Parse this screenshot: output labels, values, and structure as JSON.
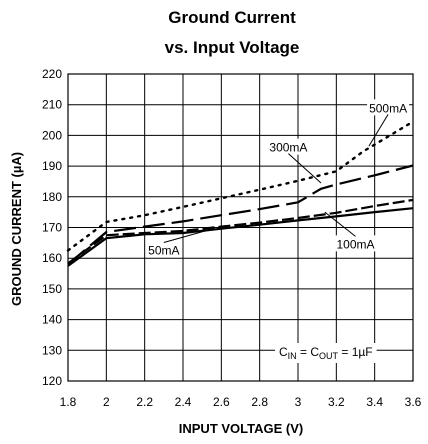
{
  "chart_data": {
    "type": "line",
    "title_line1": "Ground Current",
    "title_line2": "vs. Input Voltage",
    "xlabel": "INPUT VOLTAGE (V)",
    "ylabel": "GROUND CURRENT (µA)",
    "xlim": [
      1.8,
      3.6
    ],
    "ylim": [
      120,
      220
    ],
    "xticks": [
      "1.8",
      "2",
      "2.2",
      "2.4",
      "2.6",
      "2.8",
      "3",
      "3.2",
      "3.4",
      "3.6"
    ],
    "yticks": [
      "120",
      "130",
      "140",
      "150",
      "160",
      "170",
      "180",
      "190",
      "200",
      "210",
      "220"
    ],
    "grid": true,
    "condition": {
      "c": "C",
      "in_sub": "IN",
      "eq1": " = C",
      "out_sub": "OUT",
      "eq2": " = 1µF"
    },
    "series": [
      {
        "name": "50mA",
        "style": "solid",
        "x": [
          1.8,
          2.0,
          2.2,
          2.4,
          2.6,
          2.8,
          3.0,
          3.2,
          3.4,
          3.6
        ],
        "y": [
          157.5,
          166.5,
          167.8,
          168.2,
          169.6,
          170.9,
          172.3,
          173.6,
          175,
          176.3
        ]
      },
      {
        "name": "100mA",
        "style": "dashed",
        "x": [
          1.8,
          2.0,
          2.2,
          2.4,
          2.6,
          2.8,
          3.0,
          3.2,
          3.4,
          3.6
        ],
        "y": [
          158.3,
          167.5,
          168.2,
          168.9,
          170.3,
          171.6,
          173.1,
          174.8,
          177,
          179
        ]
      },
      {
        "name": "300mA",
        "style": "longdash",
        "x": [
          1.8,
          2.0,
          2.2,
          2.4,
          2.6,
          2.8,
          3.0,
          3.12,
          3.2,
          3.4,
          3.6
        ],
        "y": [
          158,
          168.5,
          170.3,
          172,
          174,
          176,
          178.2,
          182.6,
          184,
          187,
          190.2
        ]
      },
      {
        "name": "500mA",
        "style": "dotted",
        "x": [
          1.8,
          2.0,
          2.2,
          2.4,
          2.6,
          2.8,
          3.0,
          3.2,
          3.34,
          3.4,
          3.6
        ],
        "y": [
          162.5,
          171.8,
          174,
          176.7,
          179.5,
          182.3,
          185.2,
          188.3,
          194.8,
          197,
          204.5
        ]
      }
    ],
    "labels": [
      {
        "text": "500mA",
        "x": 3.47,
        "y": 208.8,
        "tx": 3.37,
        "ty": 196.5
      },
      {
        "text": "300mA",
        "x": 2.95,
        "y": 196.0,
        "tx": 3.12,
        "ty": 184.5
      },
      {
        "text": "50mA",
        "x": 2.3,
        "y": 162.5,
        "tx": 2.54,
        "ty": 169.3
      },
      {
        "text": "100mA",
        "x": 3.3,
        "y": 164.5,
        "tx": 3.14,
        "ty": 175.0
      }
    ]
  }
}
